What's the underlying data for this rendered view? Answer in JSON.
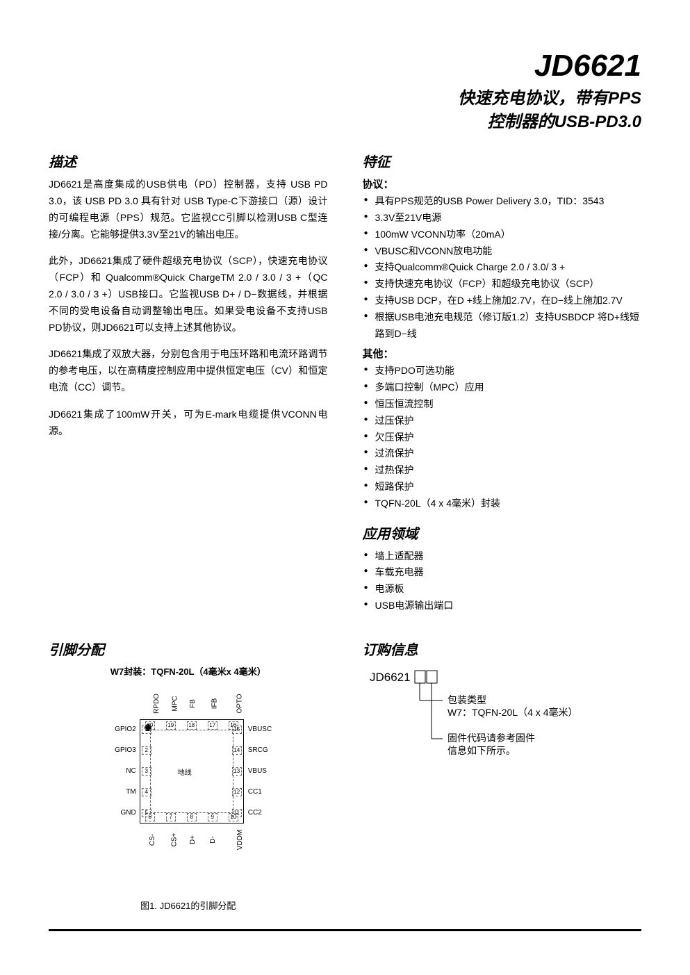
{
  "title": {
    "main": "JD6621",
    "sub_line1": "快速充电协议，带有PPS",
    "sub_line2": "控制器的USB-PD3.0"
  },
  "description": {
    "heading": "描述",
    "p1": "JD6621是高度集成的USB供电（PD）控制器，支持 USB PD 3.0，该 USB PD 3.0 具有针对 USB Type-C下游接口（源）设计的可编程电源（PPS）规范。它监视CC引脚以检测USB C型连接/分离。它能够提供3.3V至21V的输出电压。",
    "p2": "此外，JD6621集成了硬件超级充电协议（SCP），快速充电协议（FCP）和 Qualcomm®Quick ChargeTM 2.0 / 3.0 / 3 +（QC 2.0 / 3.0 / 3 +）USB接口。它监视USB D+ / D−数据线，并根据不同的受电设备自动调整输出电压。如果受电设备不支持USB PD协议，则JD6621可以支持上述其他协议。",
    "p3": "JD6621集成了双放大器，分别包含用于电压环路和电流环路调节的参考电压，以在高精度控制应用中提供恒定电压（CV）和恒定电流（CC）调节。",
    "p4": "JD6621集成了100mW开关，可为E-mark电缆提供VCONN电源。"
  },
  "features": {
    "heading": "特征",
    "protocol_heading": "协议：",
    "protocol_items": [
      "具有PPS规范的USB Power Delivery 3.0，TID：3543",
      "3.3V至21V电源",
      "100mW VCONN功率（20mA）",
      "VBUSC和VCONN放电功能",
      "支持Qualcomm®Quick Charge 2.0 / 3.0/ 3 +",
      "支持快速充电协议（FCP）和超级充电协议（SCP）",
      "支持USB DCP，在D +线上施加2.7V，在D−线上施加2.7V",
      "根据USB电池充电规范（修订版1.2）支持USBDCP 将D+线短路到D−线"
    ],
    "other_heading": "其他：",
    "other_items": [
      "支持PDO可选功能",
      "多端口控制（MPC）应用",
      "恒压恒流控制",
      "过压保护",
      "欠压保护",
      "过流保护",
      "过热保护",
      "短路保护",
      "TQFN-20L（4 x 4毫米）封装"
    ]
  },
  "applications": {
    "heading": "应用领域",
    "items": [
      "墙上适配器",
      "车载充电器",
      "电源板",
      "USB电源输出端口"
    ]
  },
  "pinout": {
    "heading": "引脚分配",
    "pkg_label": "W7封装：TQFN-20L（4毫米x 4毫米）",
    "chip_center": "地线",
    "caption": "图1. JD6621的引脚分配",
    "top_pins": [
      {
        "n": "20",
        "l": "RPDO"
      },
      {
        "n": "19",
        "l": "MPC"
      },
      {
        "n": "18",
        "l": "FB"
      },
      {
        "n": "17",
        "l": "IFB"
      },
      {
        "n": "16",
        "l": "OPTO"
      }
    ],
    "right_pins": [
      {
        "n": "15",
        "l": "VBUSC"
      },
      {
        "n": "14",
        "l": "SRCG"
      },
      {
        "n": "13",
        "l": "VBUS"
      },
      {
        "n": "12",
        "l": "CC1"
      },
      {
        "n": "11",
        "l": "CC2"
      }
    ],
    "bottom_pins": [
      {
        "n": "6",
        "l": "CS-"
      },
      {
        "n": "7",
        "l": "CS+"
      },
      {
        "n": "8",
        "l": "D+"
      },
      {
        "n": "9",
        "l": "D-"
      },
      {
        "n": "10",
        "l": "VDDM"
      }
    ],
    "left_pins": [
      {
        "n": "1",
        "l": "GPIO2"
      },
      {
        "n": "2",
        "l": "GPIO3"
      },
      {
        "n": "3",
        "l": "NC"
      },
      {
        "n": "4",
        "l": "TM"
      },
      {
        "n": "5",
        "l": "GND"
      }
    ]
  },
  "ordering": {
    "heading": "订购信息",
    "part": "JD6621",
    "pkg_type_label": "包装类型",
    "pkg_type_value": "W7：TQFN-20L（4 x 4毫米）",
    "fw_label1": "固件代码请参考固件",
    "fw_label2": "信息如下所示。"
  },
  "colors": {
    "text": "#000000",
    "bg": "#ffffff",
    "dash": "#666666"
  }
}
